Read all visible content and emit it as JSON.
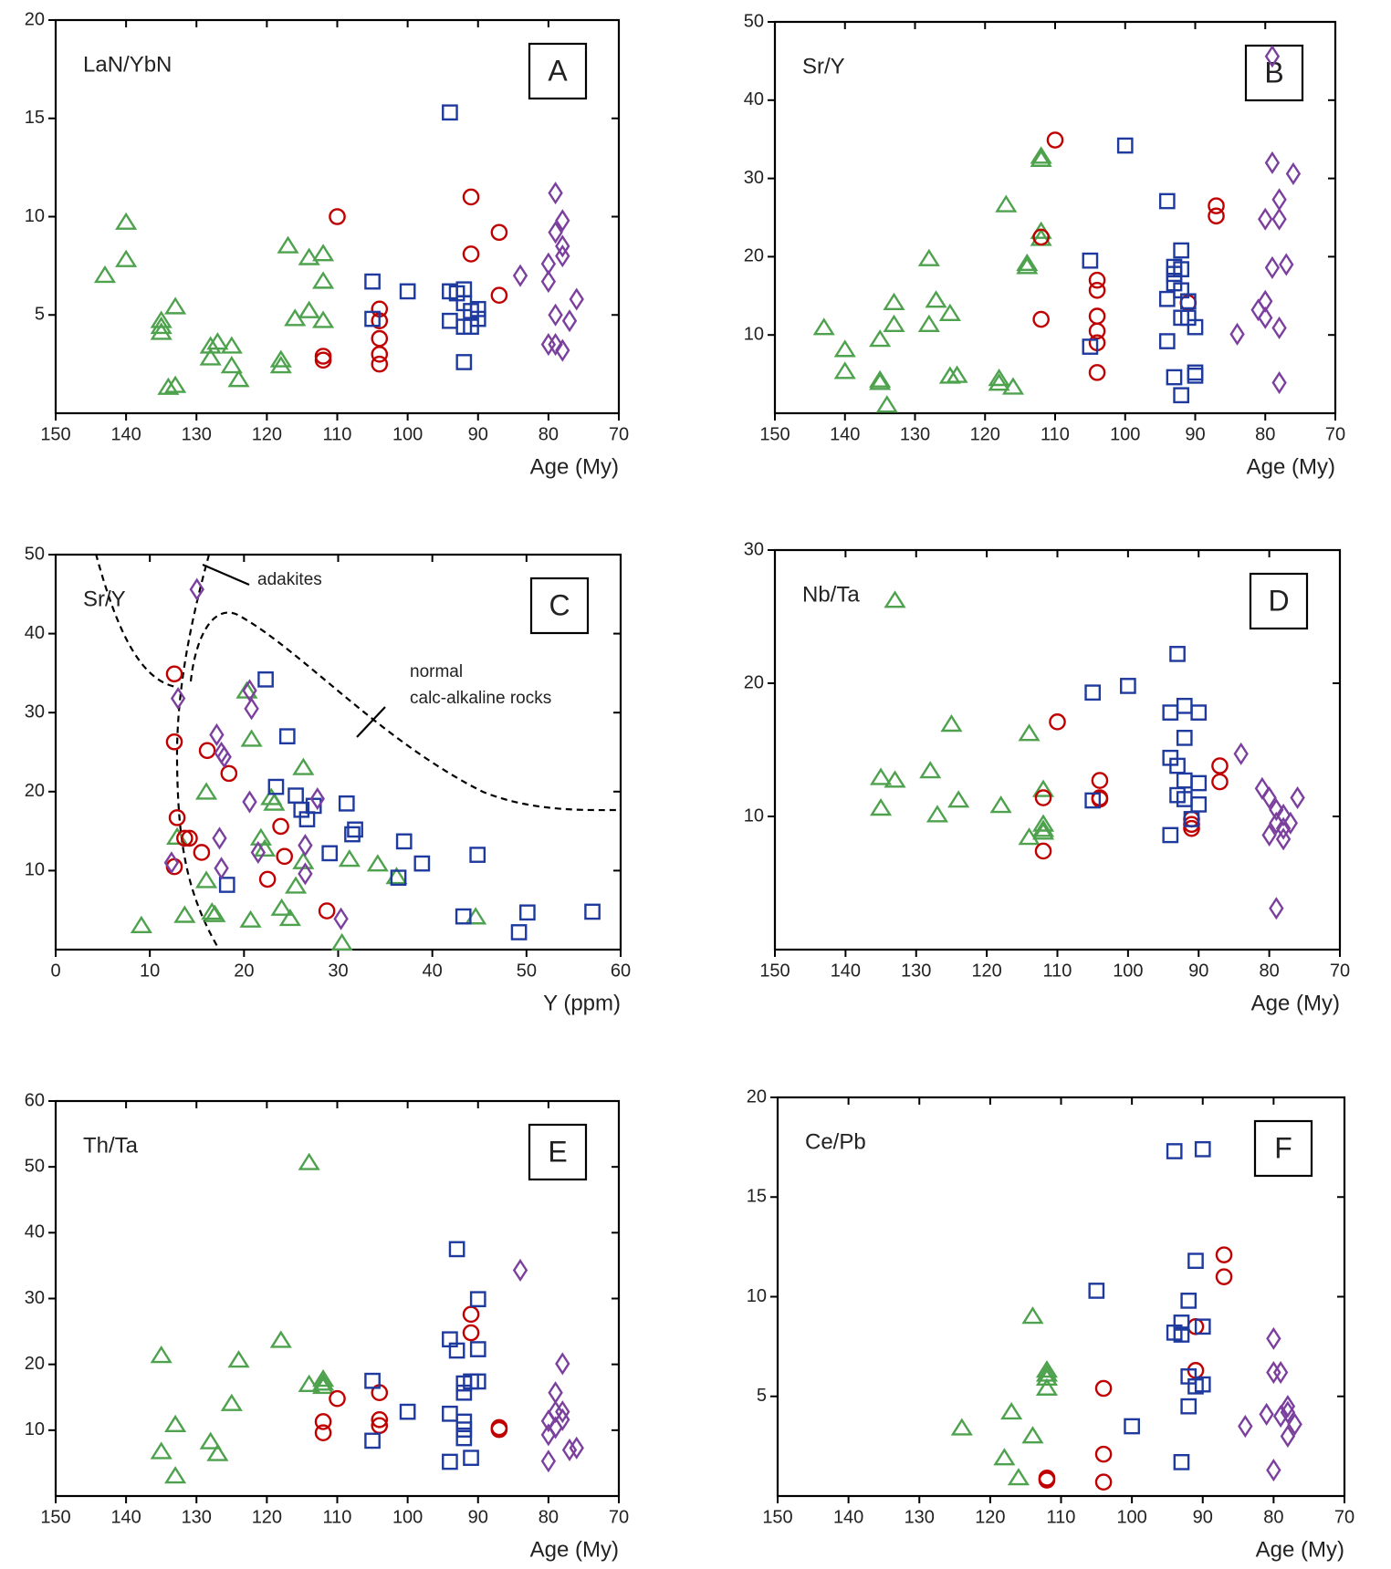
{
  "chart_data": [
    {
      "type": "scatter",
      "label": "LaN/YbN",
      "panel": "A",
      "xlabel": "Age (My)",
      "xlim": [
        150,
        70
      ],
      "xticks": [
        150,
        140,
        130,
        120,
        110,
        100,
        90,
        80,
        70
      ],
      "ylim": [
        0,
        20
      ],
      "yticks": [
        5,
        10,
        15,
        20
      ],
      "series": [
        {
          "color": "#4ea24e",
          "marker": "triangle",
          "x": [
            143,
            140,
            140,
            135,
            135,
            135,
            133,
            134,
            133,
            128,
            128,
            127,
            125,
            125,
            124,
            118,
            118,
            117,
            116,
            114,
            114,
            112,
            112,
            112
          ],
          "values": [
            7.0,
            9.7,
            7.8,
            4.7,
            4.4,
            4.1,
            5.4,
            1.3,
            1.4,
            3.4,
            2.8,
            3.6,
            3.4,
            2.4,
            1.7,
            2.7,
            2.4,
            8.5,
            4.8,
            7.9,
            5.2,
            8.1,
            6.7,
            4.7
          ]
        },
        {
          "color": "#c00000",
          "marker": "circle",
          "x": [
            112,
            112,
            110,
            104,
            104,
            104,
            104,
            104,
            91,
            91,
            87,
            87
          ],
          "values": [
            2.9,
            2.7,
            10.0,
            5.3,
            4.7,
            3.8,
            3.0,
            2.5,
            11.0,
            8.1,
            9.2,
            6.0
          ]
        },
        {
          "color": "#1f3a9e",
          "marker": "square",
          "x": [
            105,
            105,
            100,
            94,
            94,
            94,
            93,
            92,
            92,
            92,
            92,
            91,
            91,
            90,
            90
          ],
          "values": [
            6.7,
            4.8,
            6.2,
            15.3,
            6.2,
            4.7,
            6.1,
            6.3,
            5.6,
            4.4,
            2.6,
            5.2,
            4.4,
            5.3,
            4.8
          ]
        },
        {
          "color": "#7b3f9e",
          "marker": "diamond",
          "x": [
            84,
            80,
            80,
            80,
            79,
            79,
            79,
            79,
            78,
            78,
            78,
            78,
            77,
            76
          ],
          "values": [
            7.0,
            3.5,
            7.6,
            6.7,
            11.2,
            9.2,
            5.0,
            3.5,
            9.8,
            8.5,
            8.0,
            3.2,
            4.7,
            5.8
          ]
        }
      ]
    },
    {
      "type": "scatter",
      "label": "Sr/Y",
      "panel": "B",
      "xlabel": "Age (My)",
      "xlim": [
        150,
        70
      ],
      "xticks": [
        150,
        140,
        130,
        120,
        110,
        100,
        90,
        80,
        70
      ],
      "ylim": [
        0,
        50
      ],
      "yticks": [
        10,
        20,
        30,
        40,
        50
      ],
      "series": [
        {
          "color": "#4ea24e",
          "marker": "triangle",
          "x": [
            143,
            140,
            140,
            135,
            135,
            135,
            134,
            133,
            133,
            128,
            128,
            127,
            125,
            125,
            124,
            118,
            118,
            116,
            117,
            114,
            114,
            112,
            112,
            112,
            112
          ],
          "values": [
            10.9,
            8.1,
            5.3,
            9.4,
            4.2,
            3.9,
            1.0,
            14.1,
            11.3,
            19.7,
            11.3,
            14.4,
            12.7,
            4.7,
            4.8,
            4.4,
            3.8,
            3.3,
            26.6,
            19.1,
            18.7,
            32.8,
            32.4,
            23.2,
            22.3
          ]
        },
        {
          "color": "#c00000",
          "marker": "circle",
          "x": [
            112,
            112,
            110,
            104,
            104,
            104,
            104,
            104,
            104,
            91,
            87,
            87
          ],
          "values": [
            22.5,
            12.0,
            34.9,
            17.0,
            15.7,
            12.4,
            10.5,
            9.0,
            5.2,
            14.1,
            26.5,
            25.2
          ]
        },
        {
          "color": "#1f3a9e",
          "marker": "square",
          "x": [
            105,
            105,
            100,
            94,
            94,
            94,
            93,
            93,
            93,
            93,
            92,
            92,
            92,
            92,
            92,
            91,
            91,
            90,
            90,
            90
          ],
          "values": [
            19.5,
            8.5,
            34.2,
            27.1,
            14.6,
            9.2,
            18.7,
            17.8,
            16.6,
            4.6,
            20.8,
            18.4,
            15.7,
            12.2,
            2.3,
            14.3,
            12.2,
            11.0,
            5.2,
            4.8
          ]
        },
        {
          "color": "#7b3f9e",
          "marker": "diamond",
          "x": [
            84,
            81,
            80,
            80,
            80,
            79,
            79,
            79,
            78,
            78,
            78,
            78,
            77,
            76
          ],
          "values": [
            10.1,
            13.2,
            14.3,
            24.8,
            12.2,
            32.0,
            18.6,
            45.6,
            27.3,
            24.8,
            10.9,
            3.9,
            19.0,
            30.6
          ]
        }
      ]
    },
    {
      "type": "scatter",
      "label": "Sr/Y",
      "panel": "C",
      "xlabel": "Y (ppm)",
      "annotations": [
        "adakites",
        "normal",
        "calc-alkaline rocks"
      ],
      "xlim": [
        0,
        60
      ],
      "xticks": [
        0,
        10,
        20,
        30,
        40,
        50,
        60
      ],
      "ylim": [
        0,
        50
      ],
      "yticks": [
        10,
        20,
        30,
        40,
        50
      ],
      "series": [
        {
          "color": "#4ea24e",
          "marker": "triangle",
          "x": [
            9.1,
            12.9,
            13.7,
            16.0,
            16.0,
            16.6,
            16.9,
            20.3,
            20.7,
            20.8,
            21.8,
            22.2,
            22.9,
            23.2,
            24.0,
            24.9,
            25.5,
            26.3,
            26.3,
            30.4,
            31.2,
            34.2,
            36.2,
            44.6
          ],
          "values": [
            3.0,
            14.2,
            4.3,
            8.7,
            19.9,
            4.7,
            4.4,
            32.7,
            3.7,
            26.6,
            14.1,
            12.7,
            19.2,
            18.5,
            5.2,
            3.9,
            8.0,
            23.0,
            11.1,
            0.8,
            11.4,
            10.8,
            9.2,
            4.1
          ]
        },
        {
          "color": "#c00000",
          "marker": "circle",
          "x": [
            12.6,
            12.6,
            12.9,
            12.6,
            13.7,
            14.2,
            15.5,
            16.1,
            18.4,
            22.5,
            23.9,
            24.3,
            28.8
          ],
          "values": [
            34.9,
            26.3,
            16.7,
            10.5,
            14.1,
            14.1,
            12.3,
            25.2,
            22.3,
            8.9,
            15.6,
            11.8,
            4.9
          ]
        },
        {
          "color": "#1f3a9e",
          "marker": "square",
          "x": [
            18.2,
            22.3,
            23.4,
            24.6,
            25.5,
            26.1,
            26.7,
            27.4,
            29.1,
            30.9,
            31.5,
            31.8,
            37.0,
            38.9,
            36.4,
            43.3,
            44.8,
            50.1,
            49.2,
            57.0
          ],
          "values": [
            8.2,
            34.2,
            20.6,
            27.0,
            19.5,
            17.7,
            16.5,
            18.2,
            12.2,
            18.5,
            14.6,
            15.2,
            13.7,
            10.9,
            9.1,
            4.2,
            12.0,
            4.7,
            2.2,
            4.8
          ]
        },
        {
          "color": "#7b3f9e",
          "marker": "diamond",
          "x": [
            15.0,
            13.0,
            12.3,
            17.1,
            17.6,
            17.9,
            17.4,
            17.6,
            20.6,
            20.8,
            20.6,
            21.5,
            26.5,
            26.5,
            27.8,
            30.3
          ],
          "values": [
            45.6,
            31.8,
            11.0,
            27.2,
            24.9,
            24.4,
            14.1,
            10.3,
            32.8,
            30.5,
            18.7,
            12.3,
            13.2,
            9.6,
            19.1,
            3.9
          ]
        }
      ]
    },
    {
      "type": "scatter",
      "label": "Nb/Ta",
      "panel": "D",
      "xlabel": "Age (My)",
      "xlim": [
        150,
        70
      ],
      "xticks": [
        150,
        140,
        130,
        120,
        110,
        100,
        90,
        80,
        70
      ],
      "ylim": [
        0,
        30
      ],
      "yticks": [
        10,
        20,
        30
      ],
      "series": [
        {
          "color": "#4ea24e",
          "marker": "triangle",
          "x": [
            133,
            135,
            135,
            133,
            128,
            127,
            125,
            124,
            118,
            114,
            114,
            112,
            112,
            112,
            112
          ],
          "values": [
            26.2,
            12.9,
            10.6,
            12.7,
            13.4,
            10.1,
            16.9,
            11.2,
            10.8,
            16.2,
            8.4,
            12.0,
            9.4,
            9.0,
            8.8
          ]
        },
        {
          "color": "#c00000",
          "marker": "circle",
          "x": [
            112,
            112,
            110,
            104,
            104,
            104,
            91,
            91,
            91,
            87,
            87
          ],
          "values": [
            11.4,
            7.4,
            17.1,
            12.7,
            11.4,
            11.3,
            9.8,
            9.4,
            9.1,
            13.8,
            12.6
          ]
        },
        {
          "color": "#1f3a9e",
          "marker": "square",
          "x": [
            105,
            105,
            100,
            94,
            94,
            94,
            93,
            93,
            93,
            92,
            92,
            92,
            92,
            91,
            90,
            90,
            90
          ],
          "values": [
            19.3,
            11.2,
            19.8,
            14.4,
            17.8,
            8.6,
            22.2,
            13.8,
            11.6,
            18.3,
            15.9,
            12.7,
            11.3,
            9.8,
            17.8,
            12.5,
            10.9
          ]
        },
        {
          "color": "#7b3f9e",
          "marker": "diamond",
          "x": [
            84,
            81,
            80,
            80,
            79,
            79,
            79,
            78,
            78,
            78,
            77,
            76
          ],
          "values": [
            14.7,
            12.1,
            11.4,
            8.6,
            10.5,
            9.5,
            3.1,
            10.1,
            9.1,
            8.3,
            9.5,
            11.4
          ]
        }
      ]
    },
    {
      "type": "scatter",
      "label": "Th/Ta",
      "panel": "E",
      "xlabel": "Age (My)",
      "xlim": [
        150,
        70
      ],
      "xticks": [
        150,
        140,
        130,
        120,
        110,
        100,
        90,
        80,
        70
      ],
      "ylim": [
        0,
        60
      ],
      "yticks": [
        10,
        20,
        30,
        40,
        50,
        60
      ],
      "series": [
        {
          "color": "#4ea24e",
          "marker": "triangle",
          "x": [
            114,
            135,
            135,
            133,
            133,
            128,
            127,
            125,
            124,
            118,
            114,
            112,
            112,
            112
          ],
          "values": [
            50.6,
            21.3,
            6.7,
            10.8,
            3.0,
            8.2,
            6.4,
            14.0,
            20.6,
            23.6,
            16.9,
            17.7,
            17.1,
            16.6
          ]
        },
        {
          "color": "#c00000",
          "marker": "circle",
          "x": [
            112,
            112,
            110,
            104,
            104,
            104,
            91,
            91,
            87,
            87
          ],
          "values": [
            11.3,
            9.6,
            14.8,
            15.7,
            11.6,
            10.7,
            27.6,
            24.8,
            10.4,
            10.1
          ]
        },
        {
          "color": "#1f3a9e",
          "marker": "square",
          "x": [
            105,
            105,
            100,
            94,
            94,
            94,
            93,
            93,
            92,
            92,
            92,
            92,
            92,
            91,
            91,
            90,
            90,
            90
          ],
          "values": [
            17.5,
            8.4,
            12.8,
            23.8,
            12.5,
            5.2,
            37.5,
            22.1,
            17.1,
            15.7,
            11.3,
            10.1,
            8.8,
            5.8,
            17.4,
            29.9,
            22.3,
            17.4
          ]
        },
        {
          "color": "#7b3f9e",
          "marker": "diamond",
          "x": [
            84,
            80,
            80,
            80,
            79,
            79,
            79,
            78,
            78,
            78,
            77,
            76
          ],
          "values": [
            34.3,
            11.4,
            9.3,
            5.3,
            15.7,
            12.8,
            10.4,
            20.1,
            12.8,
            11.6,
            7.0,
            7.3
          ]
        }
      ]
    },
    {
      "type": "scatter",
      "label": "Ce/Pb",
      "panel": "F",
      "xlabel": "Age (My)",
      "xlim": [
        150,
        70
      ],
      "xticks": [
        150,
        140,
        130,
        120,
        110,
        100,
        90,
        80,
        70
      ],
      "ylim": [
        0,
        20
      ],
      "yticks": [
        5,
        10,
        15,
        20
      ],
      "series": [
        {
          "color": "#4ea24e",
          "marker": "triangle",
          "x": [
            124,
            118,
            117,
            116,
            114,
            114,
            112,
            112,
            112,
            112
          ],
          "values": [
            3.4,
            1.9,
            4.2,
            0.9,
            3.0,
            9.0,
            6.3,
            6.1,
            5.9,
            5.4
          ]
        },
        {
          "color": "#c00000",
          "marker": "circle",
          "x": [
            112,
            112,
            104,
            104,
            104,
            91,
            91,
            87,
            87
          ],
          "values": [
            0.9,
            0.8,
            5.4,
            2.1,
            0.7,
            8.5,
            6.3,
            12.1,
            11.0
          ]
        },
        {
          "color": "#1f3a9e",
          "marker": "square",
          "x": [
            105,
            100,
            94,
            94,
            93,
            93,
            93,
            92,
            92,
            92,
            91,
            91,
            90,
            90,
            90
          ],
          "values": [
            10.3,
            3.5,
            17.3,
            8.2,
            8.7,
            8.1,
            1.7,
            9.8,
            6.0,
            4.5,
            11.8,
            5.5,
            17.4,
            8.5,
            5.6
          ]
        },
        {
          "color": "#7b3f9e",
          "marker": "diamond",
          "x": [
            84,
            81,
            80,
            80,
            80,
            79,
            79,
            78,
            78,
            78,
            77
          ],
          "values": [
            3.5,
            4.1,
            7.9,
            6.2,
            1.3,
            6.2,
            4.0,
            4.5,
            4.2,
            3.0,
            3.6
          ]
        }
      ]
    }
  ]
}
